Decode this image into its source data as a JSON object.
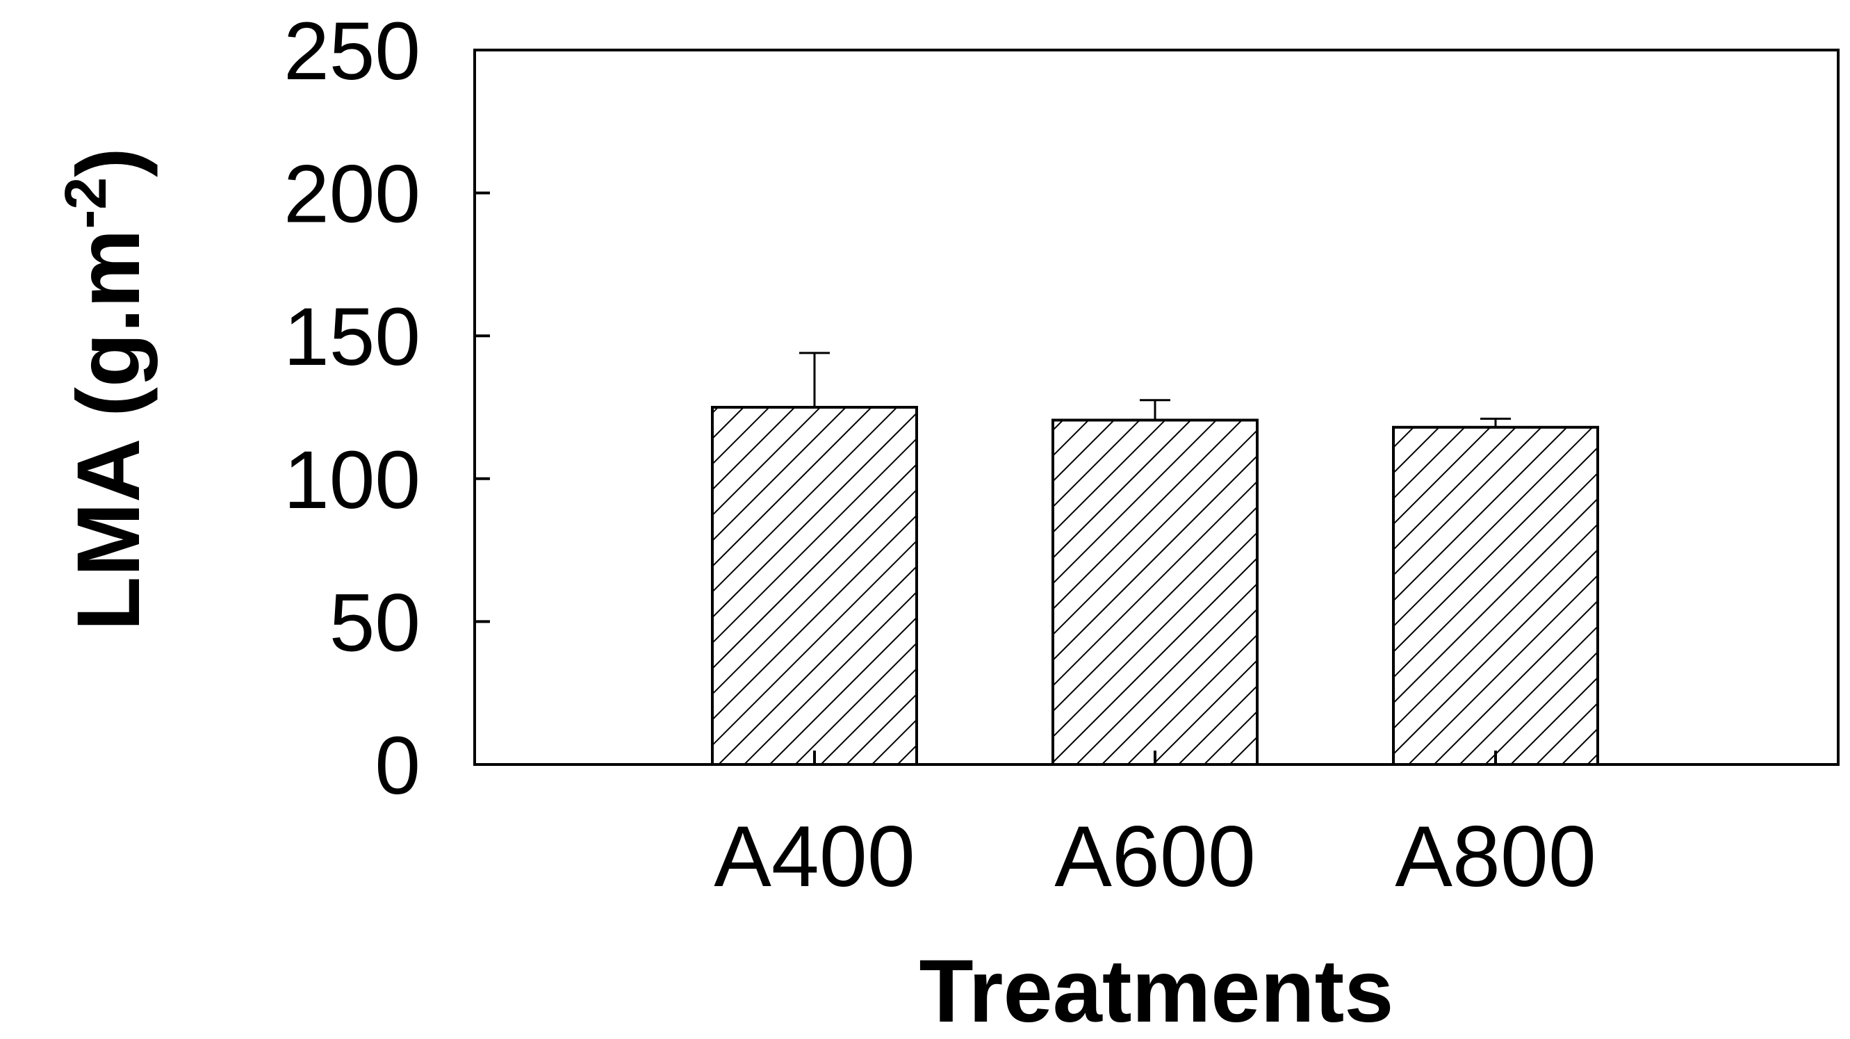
{
  "chart_data": {
    "type": "bar",
    "categories": [
      "A400",
      "A600",
      "A800"
    ],
    "values": [
      125,
      120.5,
      118
    ],
    "errors": [
      19,
      7,
      3
    ],
    "title": "",
    "xlabel": "Treatments",
    "ylabel": "LMA (g.m",
    "ylabel_sup": "-2",
    "ylabel_close": ")",
    "ylim": [
      0,
      250
    ],
    "yticks": [
      "0",
      "50",
      "100",
      "150",
      "200",
      "250"
    ],
    "grid": false,
    "legend": "none",
    "bar_fill": "hatched",
    "colors": {
      "ink": "#000000",
      "background": "#ffffff"
    }
  }
}
